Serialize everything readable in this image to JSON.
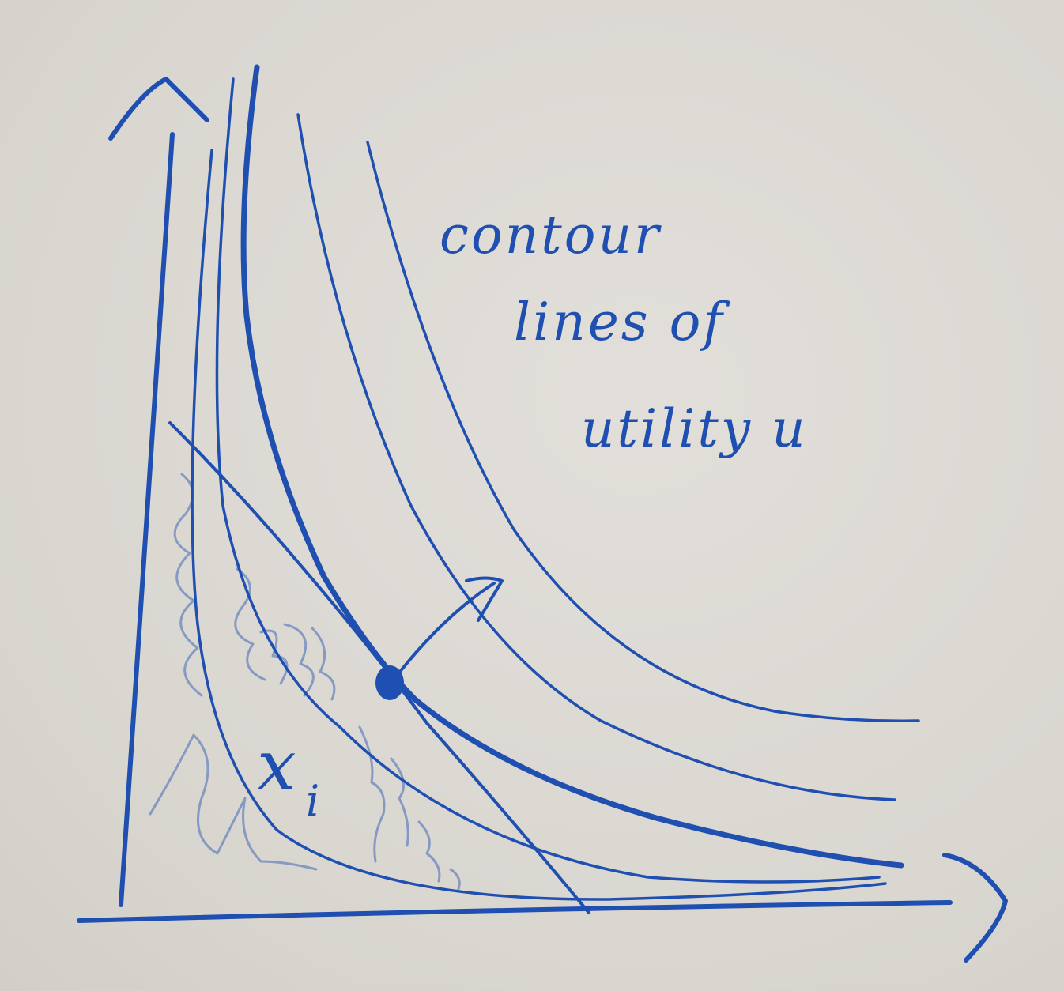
{
  "annotation": {
    "line1": "contour",
    "line2": "lines of",
    "line3": "utility u"
  },
  "point_label": {
    "base": "x",
    "subscript": "i"
  },
  "colors": {
    "ink": "#1f4fb0",
    "ink_light": "#6f8fd0",
    "paper": "#dcd9d3"
  }
}
